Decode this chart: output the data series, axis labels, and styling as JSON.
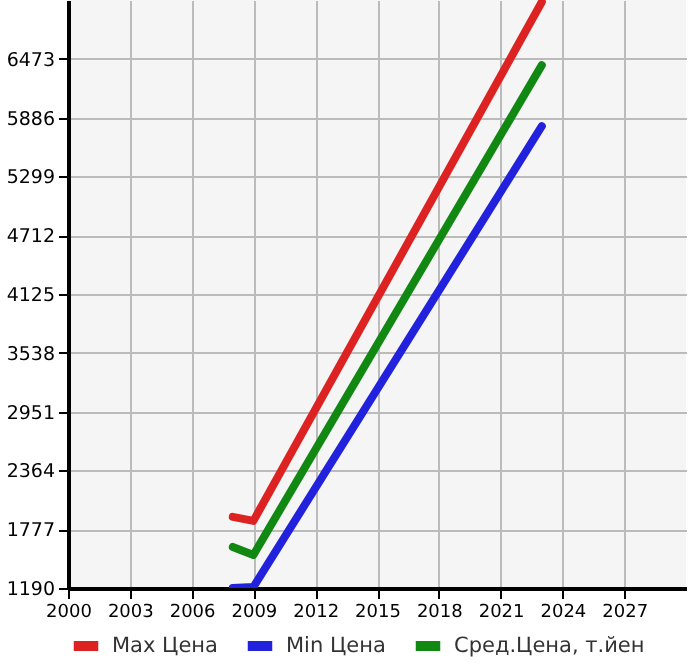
{
  "chart_data": {
    "type": "line",
    "x": [
      2008,
      2009,
      2023
    ],
    "series": [
      {
        "name": "Max Цена",
        "color": "#dd2222",
        "values": [
          1900,
          1860,
          7040
        ]
      },
      {
        "name": "Min Цена",
        "color": "#2222dd",
        "values": [
          1190,
          1200,
          5800
        ]
      },
      {
        "name": "Сред.Цена, т.йен",
        "color": "#118811",
        "values": [
          1600,
          1520,
          6410
        ]
      }
    ],
    "xlim": [
      2000,
      2030
    ],
    "xticks": [
      2000,
      2003,
      2006,
      2009,
      2012,
      2015,
      2018,
      2021,
      2024,
      2027
    ],
    "ylim": [
      1190,
      7060
    ],
    "yticks": [
      1190,
      1777,
      2364,
      2951,
      3538,
      4125,
      4712,
      5299,
      5886,
      6473
    ],
    "grid": true,
    "legend": "bottom",
    "marker": "none",
    "line_style": "solid"
  }
}
